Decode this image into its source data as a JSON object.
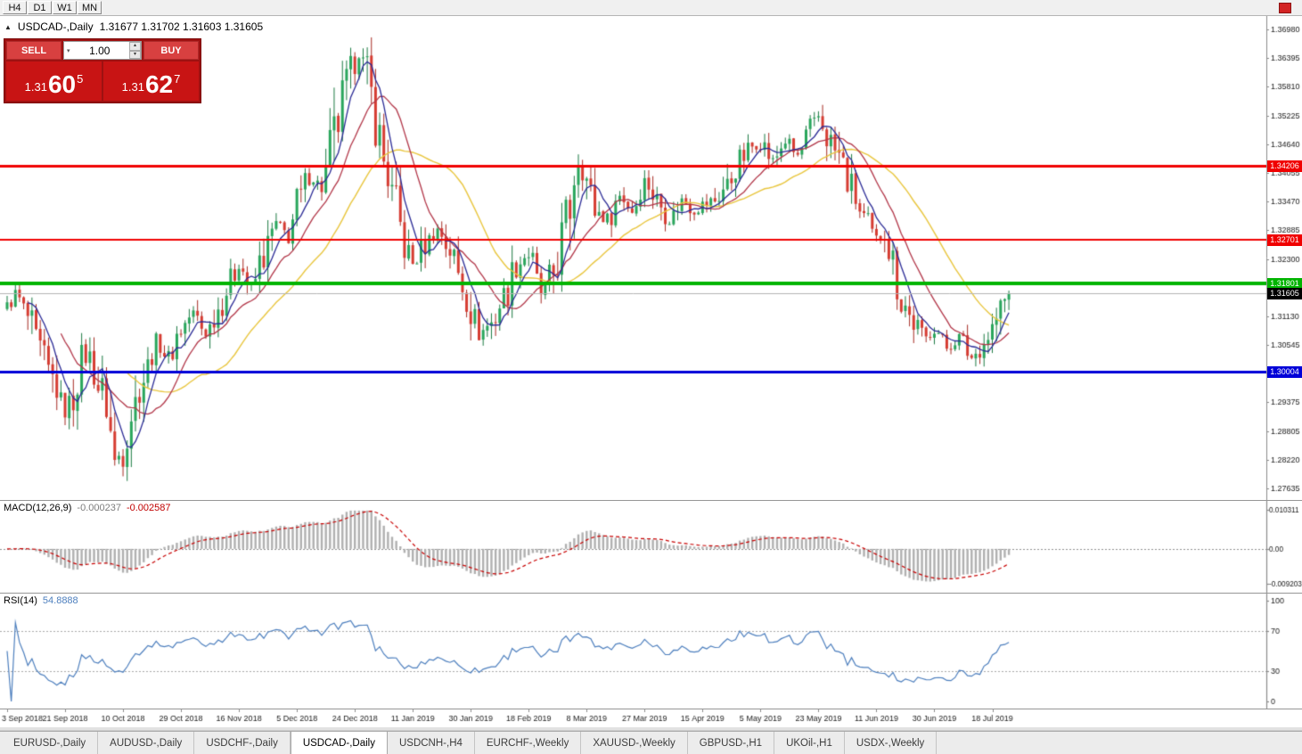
{
  "toolbar": {
    "timeframes": [
      "H4",
      "D1",
      "W1",
      "MN"
    ]
  },
  "icons": {
    "collapse": "▲",
    "dropdown": "▾",
    "spin_up": "▴",
    "spin_down": "▾"
  },
  "chart_header": {
    "symbol": "USDCAD-,Daily",
    "ohlc": "1.31677 1.31702 1.31603 1.31605"
  },
  "trade_widget": {
    "sell_label": "SELL",
    "buy_label": "BUY",
    "volume": "1.00",
    "sell_price": {
      "prefix": "1.31",
      "pips": "60",
      "pipette": "5"
    },
    "buy_price": {
      "prefix": "1.31",
      "pips": "62",
      "pipette": "7"
    }
  },
  "macd": {
    "title": "MACD(12,26,9)",
    "main_value": "-0.000237",
    "signal_value": "-0.002587"
  },
  "rsi": {
    "title": "RSI(14)",
    "value": "54.8888"
  },
  "tabs": {
    "items": [
      {
        "label": "EURUSD-,Daily",
        "active": false
      },
      {
        "label": "AUDUSD-,Daily",
        "active": false
      },
      {
        "label": "USDCHF-,Daily",
        "active": false
      },
      {
        "label": "USDCAD-,Daily",
        "active": true
      },
      {
        "label": "USDCNH-,H4",
        "active": false
      },
      {
        "label": "EURCHF-,Weekly",
        "active": false
      },
      {
        "label": "XAUUSD-,Weekly",
        "active": false
      },
      {
        "label": "GBPUSD-,H1",
        "active": false
      },
      {
        "label": "UKOil-,H1",
        "active": false
      },
      {
        "label": "USDX-,Weekly",
        "active": false
      }
    ]
  },
  "chart_data": {
    "type": "candlestick",
    "symbol": "USDCAD",
    "timeframe": "Daily",
    "candle_count": 243,
    "candles_per_label": 14,
    "last_close": 1.31605,
    "price_axis": {
      "top": 1.3698,
      "bottom": 1.27635,
      "ticks": [
        "1.36980",
        "1.36395",
        "1.35810",
        "1.35225",
        "1.34640",
        "1.34055",
        "1.33470",
        "1.32885",
        "1.32300",
        "1.31715",
        "1.31130",
        "1.30545",
        "1.29960",
        "1.29375",
        "1.28805",
        "1.28220",
        "1.27635"
      ]
    },
    "date_labels": [
      "3 Sep 2018",
      "21 Sep 2018",
      "10 Oct 2018",
      "29 Oct 2018",
      "16 Nov 2018",
      "5 Dec 2018",
      "24 Dec 2018",
      "11 Jan 2019",
      "30 Jan 2019",
      "18 Feb 2019",
      "8 Mar 2019",
      "27 Mar 2019",
      "15 Apr 2019",
      "5 May 2019",
      "23 May 2019",
      "11 Jun 2019",
      "30 Jun 2019",
      "18 Jul 2019"
    ],
    "close_anchors": [
      [
        0,
        1.313
      ],
      [
        2,
        1.316
      ],
      [
        5,
        1.311
      ],
      [
        8,
        1.304
      ],
      [
        11,
        1.2985
      ],
      [
        14,
        1.292
      ],
      [
        16,
        1.295
      ],
      [
        18,
        1.3025
      ],
      [
        20,
        1.303
      ],
      [
        22,
        1.297
      ],
      [
        24,
        1.294
      ],
      [
        26,
        1.2815
      ],
      [
        28,
        1.2845
      ],
      [
        30,
        1.292
      ],
      [
        33,
        1.299
      ],
      [
        36,
        1.306
      ],
      [
        39,
        1.303
      ],
      [
        42,
        1.309
      ],
      [
        45,
        1.312
      ],
      [
        48,
        1.308
      ],
      [
        51,
        1.313
      ],
      [
        54,
        1.318
      ],
      [
        56,
        1.322
      ],
      [
        59,
        1.317
      ],
      [
        62,
        1.324
      ],
      [
        65,
        1.33
      ],
      [
        68,
        1.328
      ],
      [
        70,
        1.334
      ],
      [
        73,
        1.34
      ],
      [
        76,
        1.338
      ],
      [
        79,
        1.348
      ],
      [
        82,
        1.358
      ],
      [
        84,
        1.363
      ],
      [
        85,
        1.365
      ],
      [
        87,
        1.36
      ],
      [
        89,
        1.352
      ],
      [
        91,
        1.343
      ],
      [
        94,
        1.333
      ],
      [
        96,
        1.326
      ],
      [
        98,
        1.322
      ],
      [
        101,
        1.326
      ],
      [
        104,
        1.329
      ],
      [
        107,
        1.325
      ],
      [
        110,
        1.318
      ],
      [
        112,
        1.313
      ],
      [
        114,
        1.308
      ],
      [
        117,
        1.31
      ],
      [
        120,
        1.315
      ],
      [
        123,
        1.322
      ],
      [
        126,
        1.324
      ],
      [
        129,
        1.316
      ],
      [
        132,
        1.32
      ],
      [
        135,
        1.33
      ],
      [
        138,
        1.3435
      ],
      [
        140,
        1.339
      ],
      [
        142,
        1.333
      ],
      [
        145,
        1.331
      ],
      [
        148,
        1.336
      ],
      [
        151,
        1.333
      ],
      [
        154,
        1.339
      ],
      [
        157,
        1.335
      ],
      [
        160,
        1.331
      ],
      [
        163,
        1.335
      ],
      [
        166,
        1.333
      ],
      [
        168,
        1.334
      ],
      [
        171,
        1.335
      ],
      [
        174,
        1.338
      ],
      [
        177,
        1.343
      ],
      [
        180,
        1.346
      ],
      [
        182,
        1.347
      ],
      [
        185,
        1.343
      ],
      [
        188,
        1.347
      ],
      [
        191,
        1.344
      ],
      [
        194,
        1.349
      ],
      [
        196,
        1.352
      ],
      [
        198,
        1.348
      ],
      [
        201,
        1.344
      ],
      [
        204,
        1.337
      ],
      [
        207,
        1.331
      ],
      [
        210,
        1.327
      ],
      [
        212,
        1.329
      ],
      [
        214,
        1.322
      ],
      [
        216,
        1.315
      ],
      [
        219,
        1.31
      ],
      [
        222,
        1.307
      ],
      [
        224,
        1.309
      ],
      [
        227,
        1.305
      ],
      [
        230,
        1.307
      ],
      [
        233,
        1.303
      ],
      [
        236,
        1.306
      ],
      [
        238,
        1.309
      ],
      [
        240,
        1.313
      ],
      [
        242,
        1.31605
      ]
    ],
    "main_levels": [
      {
        "label": "1.34206",
        "price": 1.34206,
        "color": "#f00000",
        "line_width": 3,
        "is_current": false
      },
      {
        "label": "1.32701",
        "price": 1.32701,
        "color": "#f00000",
        "line_width": 2,
        "is_current": false
      },
      {
        "label": "1.31801",
        "price": 1.31801,
        "color": "#00b400",
        "line_width": 4,
        "is_current": false
      },
      {
        "label": "1.31605",
        "price": 1.31605,
        "color": "#000000",
        "line_width": 1,
        "is_current": true
      },
      {
        "label": "1.30004",
        "price": 1.30004,
        "color": "#0000d8",
        "line_width": 3,
        "is_current": false
      }
    ],
    "ma_periods": {
      "fast": 6,
      "medium": 14,
      "slow": 30
    },
    "macd": {
      "ticks": [
        {
          "value": 0.010311,
          "label": "0.010311"
        },
        {
          "value": 0,
          "label": "0.00"
        },
        {
          "value": -0.009203,
          "label": "-0.009203"
        }
      ]
    },
    "rsi": {
      "levels": [
        70,
        30
      ],
      "ticks": [
        {
          "value": 100,
          "label": "100"
        },
        {
          "value": 70,
          "label": "70"
        },
        {
          "value": 30,
          "label": "30"
        },
        {
          "value": 0,
          "label": "0"
        }
      ]
    },
    "colors": {
      "candle_up": "#29a65c",
      "candle_up_dark": "#1b7a42",
      "candle_down": "#d63c32",
      "candle_down_dark": "#a62a22",
      "ma_fast": "#2b2b96",
      "ma_medium": "#b23648",
      "ma_slow": "#e9c63e",
      "macd_hist": "#b0b0b0",
      "macd_signal": "#c80000",
      "rsi_line": "#4d7fbe",
      "current_line": "#b4b4b4",
      "axis_text": "#1a1a1a"
    }
  }
}
